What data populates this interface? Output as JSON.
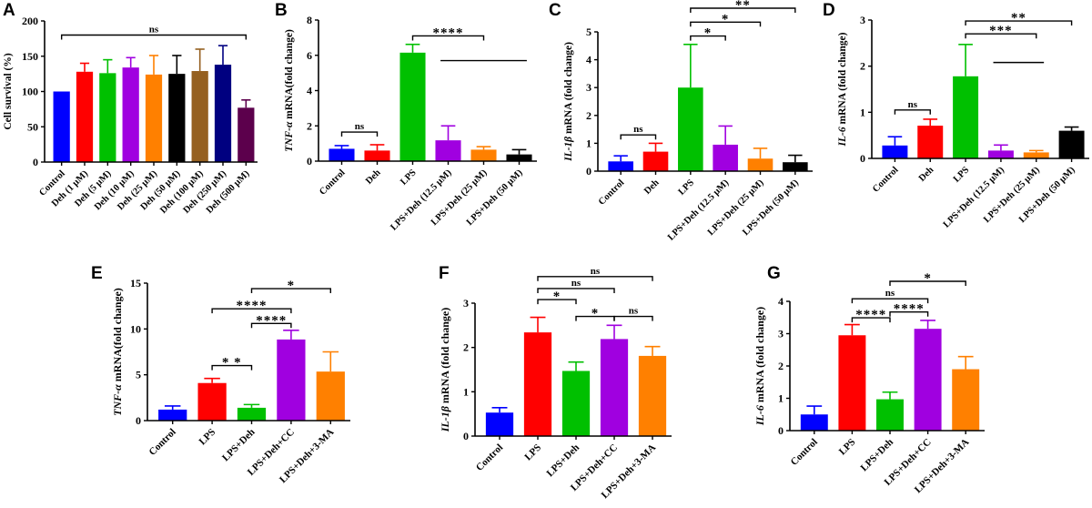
{
  "colors": {
    "blue": "#0000ff",
    "red": "#ff0000",
    "green": "#00c000",
    "purple": "#a000e0",
    "orange": "#ff8000",
    "black": "#000000",
    "brown": "#956020",
    "navy": "#000080",
    "maroon": "#5c004c"
  },
  "chart_data": [
    {
      "panel": "A",
      "type": "bar",
      "ylabel": {
        "italic": "",
        "rest": "Cell survival (%)"
      },
      "ylim": [
        0,
        200
      ],
      "yticks": [
        0,
        50,
        100,
        150,
        200
      ],
      "categories": [
        "Control",
        "Deh (1 μM)",
        "Deh (5 μM)",
        "Deh (10 μM)",
        "Deh (25 μM)",
        "Deh (50 μM)",
        "Deh (100 μM)",
        "Deh (250 μM)",
        "Deh (500 μM)"
      ],
      "values": [
        100,
        128,
        126,
        134,
        124,
        125,
        129,
        138,
        77
      ],
      "error_upper": [
        100,
        140,
        145,
        148,
        151,
        151,
        160,
        165,
        88
      ],
      "bar_colors": [
        "blue",
        "red",
        "green",
        "purple",
        "orange",
        "black",
        "brown",
        "navy",
        "maroon"
      ],
      "significance": [
        {
          "from": 0,
          "to": 8,
          "level": 180,
          "label": "ns"
        }
      ],
      "lines": []
    },
    {
      "panel": "B",
      "type": "bar",
      "ylabel": {
        "italic": "TNF-α",
        "rest": " mRNA(fold change)"
      },
      "ylim": [
        0,
        8
      ],
      "yticks": [
        0,
        2,
        4,
        6,
        8
      ],
      "categories": [
        "Control",
        "Deh",
        "LPS",
        "LPS+Deh (12.5 μM)",
        "LPS+Deh (25 μM)",
        "LPS+Deh (50 μM)"
      ],
      "values": [
        0.7,
        0.6,
        6.15,
        1.18,
        0.65,
        0.38
      ],
      "error_upper": [
        0.88,
        0.93,
        6.62,
        2.0,
        0.82,
        0.65
      ],
      "bar_colors": [
        "blue",
        "red",
        "green",
        "purple",
        "orange",
        "black"
      ],
      "significance": [
        {
          "from": 0,
          "to": 1,
          "level": 1.65,
          "label": "ns"
        },
        {
          "from": 2,
          "to": 4,
          "level": 7.1,
          "label": "****"
        }
      ],
      "lines": [
        {
          "from": 3,
          "to": 5,
          "level": 5.7
        }
      ]
    },
    {
      "panel": "C",
      "type": "bar",
      "ylabel": {
        "italic": "IL-1β",
        "rest": " mRNA (fold change)"
      },
      "ylim": [
        0,
        5
      ],
      "yticks": [
        0,
        1,
        2,
        3,
        4,
        5
      ],
      "categories": [
        "Control",
        "Deh",
        "LPS",
        "LPS+Deh (12.5 μM)",
        "LPS+Deh (25 μM)",
        "LPS+Deh (50 μM)"
      ],
      "values": [
        0.35,
        0.7,
        3.0,
        0.95,
        0.45,
        0.32
      ],
      "error_upper": [
        0.55,
        1.0,
        4.55,
        1.62,
        0.82,
        0.57
      ],
      "bar_colors": [
        "blue",
        "red",
        "green",
        "purple",
        "orange",
        "black"
      ],
      "significance": [
        {
          "from": 0,
          "to": 1,
          "level": 1.3,
          "label": "ns"
        },
        {
          "from": 2,
          "to": 3,
          "level": 4.85,
          "label": "*"
        },
        {
          "from": 2,
          "to": 4,
          "level": 5.35,
          "label": "*"
        },
        {
          "from": 2,
          "to": 5,
          "level": 5.85,
          "label": "**"
        }
      ],
      "lines": []
    },
    {
      "panel": "D",
      "type": "bar",
      "ylabel": {
        "italic": "IL-6",
        "rest": " mRNA (fold change)"
      },
      "ylim": [
        0,
        3
      ],
      "yticks": [
        0,
        1,
        2,
        3
      ],
      "categories": [
        "Control",
        "Deh",
        "LPS",
        "LPS+Deh (12.5 μM)",
        "LPS+Deh (25 μM)",
        "LPS+Deh (50 μM)"
      ],
      "values": [
        0.28,
        0.71,
        1.78,
        0.17,
        0.13,
        0.6
      ],
      "error_upper": [
        0.47,
        0.85,
        2.47,
        0.29,
        0.17,
        0.68
      ],
      "bar_colors": [
        "blue",
        "red",
        "green",
        "purple",
        "orange",
        "black"
      ],
      "significance": [
        {
          "from": 0,
          "to": 1,
          "level": 1.05,
          "label": "ns"
        },
        {
          "from": 2,
          "to": 4,
          "level": 2.7,
          "label": "***"
        },
        {
          "from": 2,
          "to": 5,
          "level": 2.98,
          "label": "**"
        }
      ],
      "lines": [
        {
          "from": 3,
          "to": 4,
          "level": 2.08
        }
      ]
    },
    {
      "panel": "E",
      "type": "bar",
      "ylabel": {
        "italic": "TNF-α",
        "rest": " mRNA(fold change)"
      },
      "ylim": [
        0,
        15
      ],
      "yticks": [
        0,
        5,
        10,
        15
      ],
      "categories": [
        "Control",
        "LPS",
        "LPS+Deh",
        "LPS+Deh+CC",
        "LPS+Deh+3-MA"
      ],
      "values": [
        1.2,
        4.1,
        1.4,
        8.85,
        5.35
      ],
      "error_upper": [
        1.6,
        4.6,
        1.75,
        9.85,
        7.5
      ],
      "bar_colors": [
        "blue",
        "red",
        "green",
        "purple",
        "orange"
      ],
      "significance": [
        {
          "from": 1,
          "to": 2,
          "level": 6.0,
          "label": "* *"
        },
        {
          "from": 2,
          "to": 3,
          "level": 10.6,
          "label": "****"
        },
        {
          "from": 1,
          "to": 3,
          "level": 12.2,
          "label": "****"
        },
        {
          "from": 2,
          "to": 4,
          "level": 14.4,
          "label": "*"
        }
      ],
      "lines": []
    },
    {
      "panel": "F",
      "type": "bar",
      "ylabel": {
        "italic": "IL-1β",
        "rest": " mRNA (fold change)"
      },
      "ylim": [
        0,
        3
      ],
      "yticks": [
        0,
        1,
        2,
        3
      ],
      "categories": [
        "Control",
        "LPS",
        "LPS+Deh",
        "LPS+Deh+CC",
        "LPS+Deh+3-MA"
      ],
      "values": [
        0.53,
        2.34,
        1.47,
        2.19,
        1.81
      ],
      "error_upper": [
        0.64,
        2.68,
        1.67,
        2.5,
        2.02
      ],
      "bar_colors": [
        "blue",
        "red",
        "green",
        "purple",
        "orange"
      ],
      "significance": [
        {
          "from": 1,
          "to": 2,
          "level": 3.08,
          "label": "*"
        },
        {
          "from": 2,
          "to": 3,
          "level": 2.7,
          "label": "*"
        },
        {
          "from": 3,
          "to": 4,
          "level": 2.7,
          "label": "ns"
        },
        {
          "from": 1,
          "to": 3,
          "level": 3.33,
          "label": "ns"
        },
        {
          "from": 1,
          "to": 4,
          "level": 3.6,
          "label": "ns"
        }
      ],
      "lines": []
    },
    {
      "panel": "G",
      "type": "bar",
      "ylabel": {
        "italic": "IL-6",
        "rest": " mRNA (fold change)"
      },
      "ylim": [
        0,
        4
      ],
      "yticks": [
        0,
        1,
        2,
        3,
        4
      ],
      "categories": [
        "Control",
        "LPS",
        "LPS+Deh",
        "LPS+Deh+CC",
        "LPS+Deh+3-MA"
      ],
      "values": [
        0.5,
        2.95,
        0.97,
        3.15,
        1.9
      ],
      "error_upper": [
        0.76,
        3.28,
        1.19,
        3.41,
        2.29
      ],
      "bar_colors": [
        "blue",
        "red",
        "green",
        "purple",
        "orange"
      ],
      "significance": [
        {
          "from": 1,
          "to": 2,
          "level": 3.49,
          "label": "****"
        },
        {
          "from": 2,
          "to": 3,
          "level": 3.67,
          "label": "****"
        },
        {
          "from": 1,
          "to": 3,
          "level": 4.08,
          "label": "ns"
        },
        {
          "from": 2,
          "to": 4,
          "level": 4.62,
          "label": "*"
        }
      ],
      "lines": []
    }
  ]
}
